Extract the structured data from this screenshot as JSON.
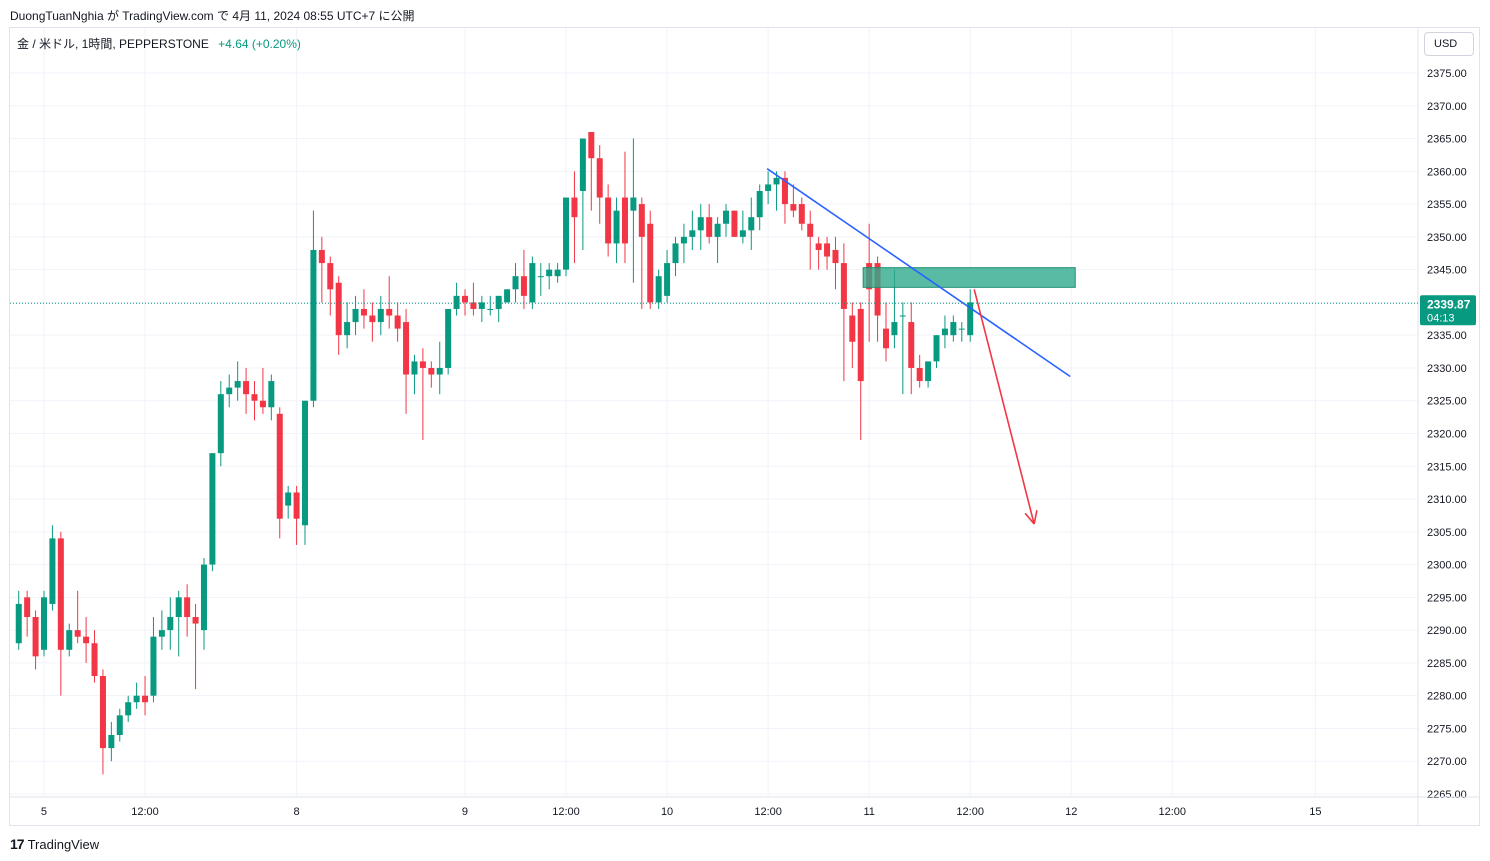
{
  "header": {
    "publisher_line": "DuongTuanNghia が TradingView.com で 4月 11, 2024 08:55 UTC+7 に公開"
  },
  "legend": {
    "symbol": "金 / 米ドル, 1時間, PEPPERSTONE",
    "change": "+4.64 (+0.20%)"
  },
  "currency_button": "USD",
  "footer": {
    "logo_mark": "17",
    "logo_text": "TradingView"
  },
  "colors": {
    "up": "#089981",
    "down": "#f23645",
    "grid": "#f0f3fa",
    "trendline": "#2962ff",
    "arrow": "#f23645",
    "zone": "#2faa8c"
  },
  "chart_data": {
    "type": "candlestick",
    "title": "金 / 米ドル, 1時間, PEPPERSTONE",
    "ylim": [
      2264,
      2378
    ],
    "y_ticks": [
      "2375.00",
      "2370.00",
      "2365.00",
      "2360.00",
      "2355.00",
      "2350.00",
      "2345.00",
      "2340.00",
      "2335.00",
      "2330.00",
      "2325.00",
      "2320.00",
      "2315.00",
      "2310.00",
      "2305.00",
      "2300.00",
      "2295.00",
      "2290.00",
      "2285.00",
      "2280.00",
      "2275.00",
      "2270.00",
      "2265.00"
    ],
    "x_ticks": [
      {
        "label": "5",
        "index": 3
      },
      {
        "label": "12:00",
        "index": 15
      },
      {
        "label": "8",
        "index": 33
      },
      {
        "label": "9",
        "index": 53
      },
      {
        "label": "12:00",
        "index": 65
      },
      {
        "label": "10",
        "index": 77
      },
      {
        "label": "12:00",
        "index": 89
      },
      {
        "label": "11",
        "index": 101
      },
      {
        "label": "12:00",
        "index": 113
      },
      {
        "label": "12",
        "index": 125
      },
      {
        "label": "12:00",
        "index": 137
      },
      {
        "label": "15",
        "index": 154
      }
    ],
    "last_price": {
      "label": "2339.87",
      "value": 2339.87,
      "countdown": "04:13"
    },
    "candles": [
      [
        2288,
        2296,
        2287,
        2294
      ],
      [
        2295,
        2296,
        2289,
        2292
      ],
      [
        2292,
        2293,
        2284,
        2286
      ],
      [
        2287,
        2296,
        2286,
        2295
      ],
      [
        2294,
        2306,
        2293,
        2304
      ],
      [
        2304,
        2305,
        2280,
        2287
      ],
      [
        2287,
        2291,
        2286,
        2290
      ],
      [
        2290,
        2296,
        2288,
        2289
      ],
      [
        2289,
        2292,
        2285,
        2288
      ],
      [
        2288,
        2290,
        2282,
        2283
      ],
      [
        2283,
        2284,
        2268,
        2272
      ],
      [
        2272,
        2276,
        2270,
        2274
      ],
      [
        2274,
        2278,
        2273,
        2277
      ],
      [
        2277,
        2280,
        2276,
        2279
      ],
      [
        2279,
        2282,
        2278,
        2280
      ],
      [
        2280,
        2283,
        2277,
        2279
      ],
      [
        2280,
        2292,
        2279,
        2289
      ],
      [
        2289,
        2293,
        2287,
        2290
      ],
      [
        2290,
        2295,
        2287,
        2292
      ],
      [
        2292,
        2296,
        2286,
        2295
      ],
      [
        2295,
        2297,
        2289,
        2292
      ],
      [
        2292,
        2294,
        2281,
        2291
      ],
      [
        2290,
        2301,
        2287,
        2300
      ],
      [
        2300,
        2317,
        2299,
        2317
      ],
      [
        2317,
        2328,
        2315,
        2326
      ],
      [
        2326,
        2329,
        2324,
        2327
      ],
      [
        2327,
        2331,
        2325,
        2328
      ],
      [
        2328,
        2330,
        2323,
        2326
      ],
      [
        2326,
        2328,
        2322,
        2325
      ],
      [
        2325,
        2330,
        2323,
        2324
      ],
      [
        2324,
        2329,
        2322,
        2328
      ],
      [
        2323,
        2324,
        2304,
        2307
      ],
      [
        2309,
        2312,
        2307,
        2311
      ],
      [
        2311,
        2312,
        2303,
        2307
      ],
      [
        2306,
        2325,
        2303,
        2325
      ],
      [
        2325,
        2354,
        2324,
        2348
      ],
      [
        2348,
        2350,
        2340,
        2346
      ],
      [
        2346,
        2347,
        2338,
        2342
      ],
      [
        2343,
        2344,
        2332,
        2335
      ],
      [
        2335,
        2340,
        2333,
        2337
      ],
      [
        2337,
        2341,
        2335,
        2339
      ],
      [
        2339,
        2342,
        2336,
        2338
      ],
      [
        2338,
        2340,
        2334,
        2337
      ],
      [
        2337,
        2341,
        2335,
        2339
      ],
      [
        2339,
        2344,
        2336,
        2338
      ],
      [
        2338,
        2340,
        2334,
        2336
      ],
      [
        2337,
        2339,
        2323,
        2329
      ],
      [
        2329,
        2332,
        2326,
        2331
      ],
      [
        2331,
        2333,
        2319,
        2330
      ],
      [
        2330,
        2331,
        2327,
        2329
      ],
      [
        2329,
        2334,
        2326,
        2330
      ],
      [
        2330,
        2338,
        2329,
        2339
      ],
      [
        2339,
        2343,
        2338,
        2341
      ],
      [
        2341,
        2342,
        2338,
        2340
      ],
      [
        2340,
        2343,
        2338,
        2339
      ],
      [
        2339,
        2341,
        2337,
        2340
      ],
      [
        2339,
        2341,
        2338,
        2339
      ],
      [
        2339,
        2341,
        2337,
        2341
      ],
      [
        2340,
        2342,
        2340,
        2342
      ],
      [
        2342,
        2346,
        2340,
        2344
      ],
      [
        2344,
        2348,
        2339,
        2341
      ],
      [
        2340,
        2347,
        2339,
        2346
      ],
      [
        2344,
        2346,
        2341,
        2344
      ],
      [
        2344,
        2346,
        2342,
        2345
      ],
      [
        2344,
        2346,
        2343,
        2345
      ],
      [
        2345,
        2355,
        2344,
        2356
      ],
      [
        2356,
        2360,
        2346,
        2353
      ],
      [
        2357,
        2365,
        2348,
        2365
      ],
      [
        2366,
        2365,
        2354,
        2362
      ],
      [
        2362,
        2364,
        2352,
        2356
      ],
      [
        2356,
        2358,
        2347,
        2349
      ],
      [
        2349,
        2356,
        2346,
        2354
      ],
      [
        2356,
        2363,
        2346,
        2349
      ],
      [
        2354,
        2365,
        2343,
        2356
      ],
      [
        2355,
        2356,
        2339,
        2350
      ],
      [
        2352,
        2354,
        2339,
        2340
      ],
      [
        2340,
        2345,
        2339,
        2344
      ],
      [
        2341,
        2348,
        2340,
        2346
      ],
      [
        2346,
        2350,
        2344,
        2349
      ],
      [
        2349,
        2352,
        2346,
        2350
      ],
      [
        2350,
        2354,
        2348,
        2351
      ],
      [
        2351,
        2355,
        2348,
        2353
      ],
      [
        2353,
        2355,
        2349,
        2350
      ],
      [
        2350,
        2353,
        2346,
        2352
      ],
      [
        2352,
        2355,
        2350,
        2354
      ],
      [
        2354,
        2354,
        2350,
        2350
      ],
      [
        2350,
        2354,
        2349,
        2351
      ],
      [
        2351,
        2356,
        2348,
        2353
      ],
      [
        2353,
        2358,
        2351,
        2357
      ],
      [
        2357,
        2360,
        2355,
        2358
      ],
      [
        2358,
        2360,
        2354,
        2359
      ],
      [
        2359,
        2360,
        2352,
        2355
      ],
      [
        2355,
        2358,
        2353,
        2354
      ],
      [
        2355,
        2356,
        2351,
        2352
      ],
      [
        2352,
        2354,
        2345,
        2350
      ],
      [
        2349,
        2350,
        2345,
        2348
      ],
      [
        2349,
        2350,
        2345,
        2347
      ],
      [
        2348,
        2350,
        2342,
        2346
      ],
      [
        2346,
        2349,
        2328,
        2339
      ],
      [
        2338,
        2340,
        2330,
        2334
      ],
      [
        2339,
        2340,
        2319,
        2328
      ],
      [
        2346,
        2352,
        2334,
        2342
      ],
      [
        2346,
        2347,
        2334,
        2338
      ],
      [
        2336,
        2340,
        2331,
        2333
      ],
      [
        2335,
        2345,
        2333,
        2337
      ],
      [
        2338,
        2340,
        2326,
        2338
      ],
      [
        2337,
        2340,
        2326,
        2330
      ],
      [
        2330,
        2332,
        2327,
        2328
      ],
      [
        2328,
        2330,
        2327,
        2331
      ],
      [
        2331,
        2335,
        2330,
        2335
      ],
      [
        2335,
        2338,
        2333,
        2336
      ],
      [
        2335,
        2338,
        2334,
        2337
      ],
      [
        2336,
        2337,
        2334,
        2336
      ],
      [
        2335,
        2342,
        2334,
        2340
      ]
    ],
    "drawings": {
      "resistance_zone": {
        "from_index": 101,
        "to_index": 125,
        "top": 2345.3,
        "bottom": 2342.3
      },
      "trendline": {
        "from": {
          "index": 89,
          "value": 2360.4
        },
        "to": {
          "index": 125,
          "value": 2328.7
        }
      },
      "arrow": {
        "from": {
          "index": 113,
          "value": 2342.0
        },
        "to": {
          "index": 120,
          "value": 2306.2
        }
      }
    }
  }
}
